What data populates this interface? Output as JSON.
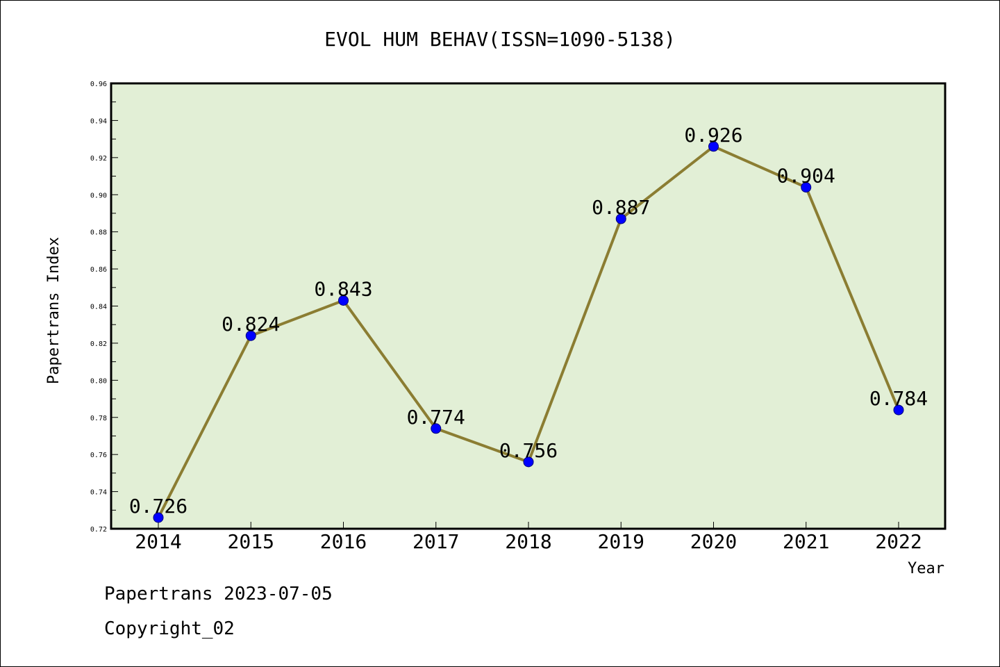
{
  "chart_data": {
    "type": "line",
    "title": "EVOL HUM BEHAV(ISSN=1090-5138)",
    "xlabel": "Year",
    "ylabel": "Papertrans Index",
    "categories": [
      "2014",
      "2015",
      "2016",
      "2017",
      "2018",
      "2019",
      "2020",
      "2021",
      "2022"
    ],
    "values": [
      0.726,
      0.824,
      0.843,
      0.774,
      0.756,
      0.887,
      0.926,
      0.904,
      0.784
    ],
    "data_labels": [
      "0.726",
      "0.824",
      "0.843",
      "0.774",
      "0.756",
      "0.887",
      "0.926",
      "0.904",
      "0.784"
    ],
    "ylim": [
      0.72,
      0.96
    ],
    "yticks": [
      "0.72",
      "0.74",
      "0.76",
      "0.78",
      "0.80",
      "0.82",
      "0.84",
      "0.86",
      "0.88",
      "0.90",
      "0.92",
      "0.94",
      "0.96"
    ],
    "grid": false,
    "colors": {
      "plot_background": "#e2efd6",
      "line": "#8b7d32",
      "marker": "#0000ff"
    }
  },
  "footer": {
    "line1": "Papertrans 2023-07-05",
    "line2": "Copyright_02"
  }
}
